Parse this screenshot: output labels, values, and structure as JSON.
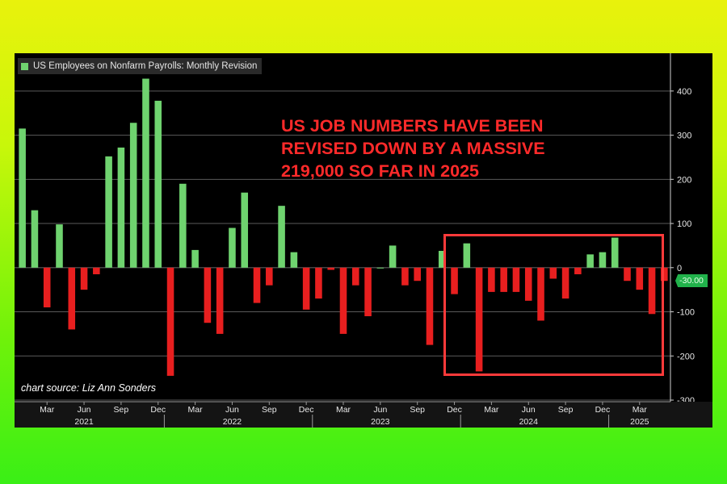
{
  "chart_data": {
    "type": "bar",
    "title": "US Employees on Nonfarm Payrolls: Monthly Revision",
    "series": [
      {
        "name": "US Employees on Nonfarm Payrolls: Monthly Revision",
        "values": [
          315,
          130,
          -90,
          98,
          -140,
          -50,
          -15,
          252,
          272,
          328,
          428,
          378,
          -245,
          190,
          40,
          -125,
          -150,
          90,
          170,
          -80,
          -40,
          140,
          35,
          -95,
          -70,
          -5,
          -150,
          -40,
          -110,
          0,
          50,
          -40,
          -30,
          -175,
          38,
          -60,
          55,
          -235,
          -55,
          -55,
          -55,
          -75,
          -120,
          -25,
          -70,
          -15,
          30,
          35,
          68,
          -30,
          -50,
          -105,
          -30
        ],
        "positive_color": "#6fd36f",
        "negative_color": "#e81f1f"
      }
    ],
    "start_month": "2021-01",
    "ylim": [
      -300,
      460
    ],
    "yticks": [
      -300,
      -200,
      -100,
      0,
      100,
      200,
      300,
      400
    ],
    "ytick_labels": [
      "-300",
      "-200",
      "-100",
      "0",
      "100",
      "200",
      "300",
      "400"
    ],
    "xtick_labels": [
      {
        "label": "Mar",
        "month": "2021-03"
      },
      {
        "label": "Jun",
        "month": "2021-06"
      },
      {
        "label": "Sep",
        "month": "2021-09"
      },
      {
        "label": "Dec",
        "month": "2021-12"
      },
      {
        "label": "Mar",
        "month": "2022-03"
      },
      {
        "label": "Jun",
        "month": "2022-06"
      },
      {
        "label": "Sep",
        "month": "2022-09"
      },
      {
        "label": "Dec",
        "month": "2022-12"
      },
      {
        "label": "Mar",
        "month": "2023-03"
      },
      {
        "label": "Jun",
        "month": "2023-06"
      },
      {
        "label": "Sep",
        "month": "2023-09"
      },
      {
        "label": "Dec",
        "month": "2023-12"
      },
      {
        "label": "Mar",
        "month": "2024-03"
      },
      {
        "label": "Jun",
        "month": "2024-06"
      },
      {
        "label": "Sep",
        "month": "2024-09"
      },
      {
        "label": "Dec",
        "month": "2024-12"
      },
      {
        "label": "Mar",
        "month": "2025-03"
      }
    ],
    "year_labels": [
      {
        "label": "2021",
        "month": "2021-06"
      },
      {
        "label": "2022",
        "month": "2022-06"
      },
      {
        "label": "2023",
        "month": "2023-06"
      },
      {
        "label": "2024",
        "month": "2024-06"
      },
      {
        "label": "2025",
        "month": "2025-03"
      }
    ],
    "grid": true,
    "last_value_label": "-30.00"
  },
  "annotation": {
    "headline": "US JOB NUMBERS HAVE BEEN\nREVISED DOWN BY A MASSIVE\n219,000 SO FAR IN 2025",
    "source": "chart source: Liz Ann Sonders"
  },
  "colors": {
    "highlight_box": "#ff3a3a",
    "headline": "#ff2a2a",
    "grid": "#5a5a5a"
  }
}
